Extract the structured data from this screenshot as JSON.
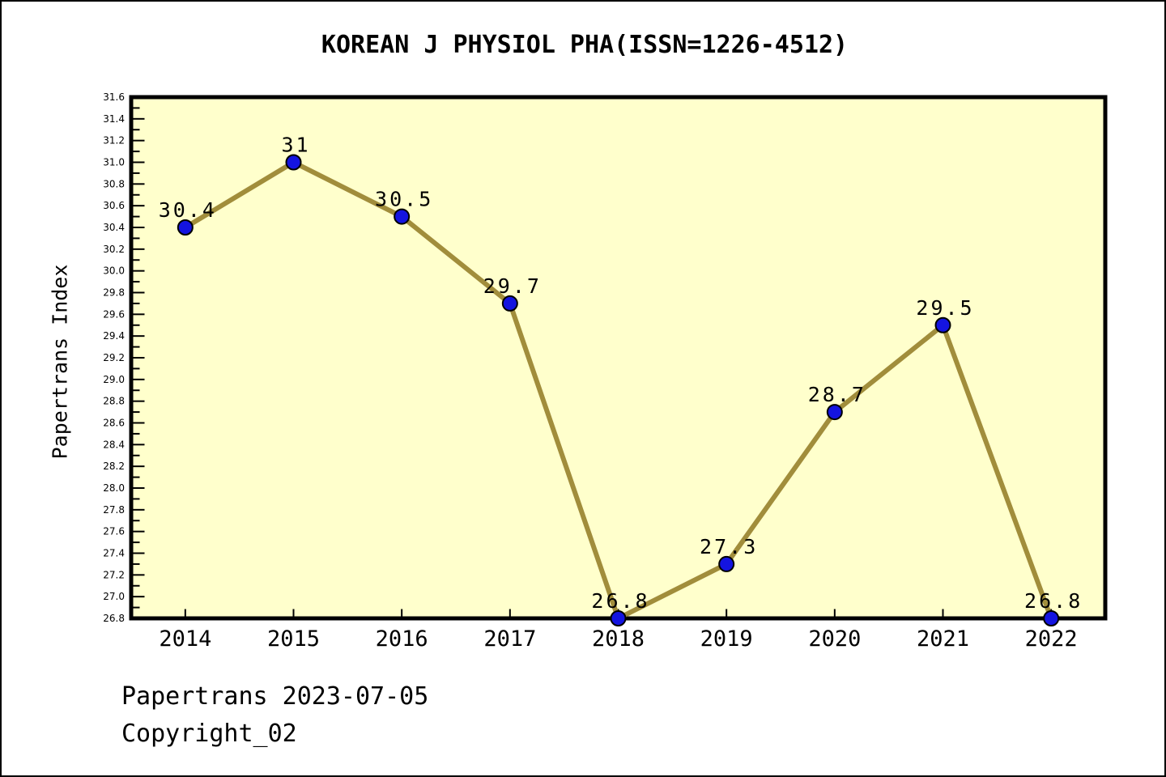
{
  "title": "KOREAN J PHYSIOL PHA(ISSN=1226-4512)",
  "footer": {
    "line1": "Papertrans 2023-07-05",
    "line2": "Copyright_02"
  },
  "chart_data": {
    "type": "line",
    "title": "KOREAN J PHYSIOL PHA(ISSN=1226-4512)",
    "xlabel": "",
    "ylabel": "Papertrans Index",
    "x": [
      2014,
      2015,
      2016,
      2017,
      2018,
      2019,
      2020,
      2021,
      2022
    ],
    "values": [
      30.4,
      31,
      30.5,
      29.7,
      26.8,
      27.3,
      28.7,
      29.5,
      26.8
    ],
    "point_labels": [
      "30.4",
      "31",
      "30.5",
      "29.7",
      "26.8",
      "27.3",
      "28.7",
      "29.5",
      "26.8"
    ],
    "xlim": [
      2013.5,
      2022.5
    ],
    "ylim": [
      26.8,
      31.6
    ],
    "ytick_step": 0.2,
    "yminor_step": 0.1,
    "grid": "off",
    "legend": "none",
    "colors": {
      "plot_bg": "#FFFFCC",
      "line": "#A18D3B",
      "marker": "#1414E0",
      "marker_edge": "#000000",
      "spine": "#000000",
      "text": "#000000"
    }
  }
}
